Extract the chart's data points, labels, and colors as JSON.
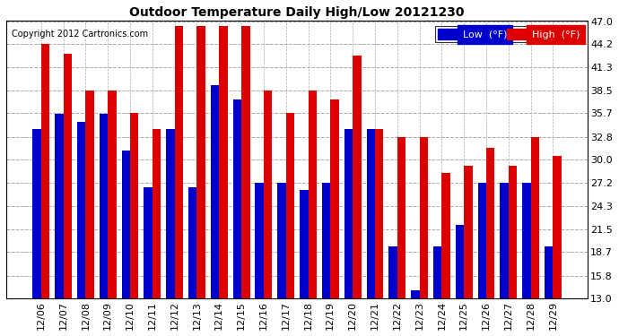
{
  "title": "Outdoor Temperature Daily High/Low 20121230",
  "copyright": "Copyright 2012 Cartronics.com",
  "legend_low_label": "Low  (°F)",
  "legend_high_label": "High  (°F)",
  "low_color": "#0000cc",
  "high_color": "#dd0000",
  "background_color": "#ffffff",
  "plot_background": "#ffffff",
  "grid_color": "#aaaaaa",
  "dates": [
    "12/06",
    "12/07",
    "12/08",
    "12/09",
    "12/10",
    "12/11",
    "12/12",
    "12/13",
    "12/14",
    "12/15",
    "12/16",
    "12/17",
    "12/18",
    "12/19",
    "12/20",
    "12/21",
    "12/22",
    "12/23",
    "12/24",
    "12/25",
    "12/26",
    "12/27",
    "12/28",
    "12/29"
  ],
  "high": [
    44.2,
    43.0,
    38.5,
    38.5,
    35.7,
    33.8,
    46.4,
    46.4,
    46.4,
    46.4,
    38.5,
    35.7,
    38.5,
    37.4,
    42.8,
    33.8,
    32.8,
    32.8,
    28.4,
    29.3,
    31.5,
    29.3,
    32.8,
    30.5
  ],
  "low": [
    33.8,
    35.6,
    34.7,
    35.6,
    31.1,
    26.6,
    33.8,
    26.6,
    39.2,
    37.4,
    27.2,
    27.2,
    26.3,
    27.2,
    33.8,
    33.8,
    19.4,
    14.0,
    19.4,
    22.0,
    27.2,
    27.2,
    27.2,
    19.4
  ],
  "ylim": [
    13.0,
    47.0
  ],
  "yticks": [
    13.0,
    15.8,
    18.7,
    21.5,
    24.3,
    27.2,
    30.0,
    32.8,
    35.7,
    38.5,
    41.3,
    44.2,
    47.0
  ],
  "bar_width": 0.38
}
